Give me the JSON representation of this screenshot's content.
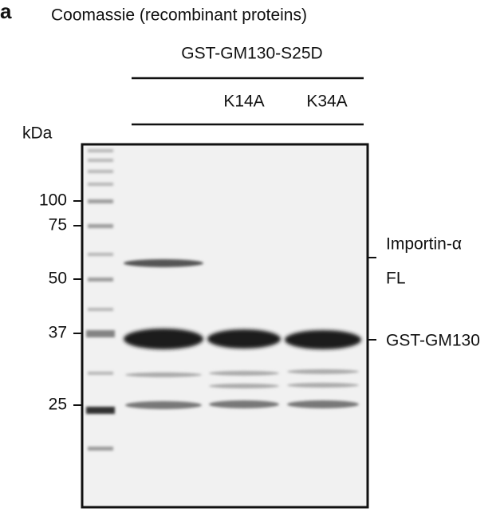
{
  "panel_label": "a",
  "title": "Coomassie (recombinant proteins)",
  "construct": "GST-GM130-S25D",
  "lanes": [
    "K14A",
    "K34A"
  ],
  "unit": "kDa",
  "markers": [
    100,
    75,
    50,
    37,
    25
  ],
  "annotations": [
    {
      "lines": [
        "Importin-α",
        "FL"
      ]
    },
    {
      "lines": [
        "GST-GM130"
      ]
    }
  ]
}
